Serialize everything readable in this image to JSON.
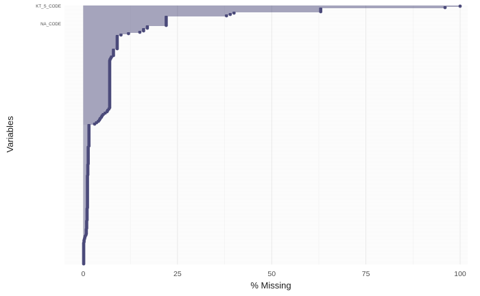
{
  "chart_data": {
    "type": "lollipop",
    "orientation": "horizontal",
    "xlabel": "% Missing",
    "ylabel": "Variables",
    "xlim": [
      -5,
      102
    ],
    "xticks": [
      0,
      25,
      50,
      75,
      100
    ],
    "grid": true,
    "legend": "none",
    "colors": {
      "mark": "#4b4a7a",
      "grid_major": "#e3e3e3",
      "grid_minor": "#f0f0f0",
      "text": "#4d4d4d"
    },
    "variables": [
      "KT_S_CODE",
      "",
      "",
      "",
      "",
      "",
      "",
      "",
      "",
      "",
      "",
      "",
      "",
      "NA_CODE",
      "",
      "",
      "",
      "",
      "",
      "",
      "",
      "",
      "",
      "",
      "",
      "",
      "",
      "",
      "",
      "",
      "",
      "",
      "",
      "",
      "",
      "",
      "",
      "",
      "",
      "",
      "",
      "",
      "",
      "",
      "",
      "",
      "",
      "",
      "",
      "",
      "",
      "",
      "",
      "",
      "",
      "",
      "",
      "",
      "",
      "",
      "",
      "",
      "",
      "",
      "",
      "",
      "",
      "",
      "",
      "",
      "",
      "",
      "",
      "",
      "",
      "",
      "",
      "",
      "",
      "",
      "",
      "",
      "",
      "",
      "",
      "",
      "",
      "",
      "",
      "",
      "",
      "",
      "",
      "",
      "",
      "",
      "",
      "",
      "",
      "",
      "",
      "",
      "",
      "",
      "",
      "",
      "",
      "",
      "",
      "",
      "",
      "",
      "",
      "",
      "",
      "",
      "",
      "",
      "",
      "",
      "",
      "",
      "",
      "",
      "",
      "",
      "",
      "",
      "",
      "",
      "",
      "",
      "",
      "",
      "",
      "",
      "",
      "",
      "",
      "",
      "",
      "",
      "",
      "",
      "",
      "",
      "",
      "",
      "",
      "",
      "",
      "",
      "",
      "",
      "",
      "",
      "",
      "",
      "",
      "",
      ""
    ],
    "values": [
      100,
      96,
      63,
      63,
      63,
      40,
      39,
      38,
      22,
      22,
      22,
      22,
      22,
      22,
      22,
      17,
      17,
      16,
      16,
      15,
      12,
      10,
      9,
      9,
      9,
      9,
      9,
      9,
      9,
      9,
      9,
      9,
      8,
      8,
      8,
      8,
      8,
      7.5,
      7.3,
      7.1,
      7,
      7,
      7,
      7,
      7,
      7,
      7,
      7,
      7,
      7,
      7,
      7,
      7,
      7,
      7,
      7,
      7,
      7,
      7,
      7,
      7,
      7,
      7,
      7,
      7,
      7,
      7,
      7,
      7,
      7,
      7,
      7,
      7,
      7,
      7,
      6.8,
      6.5,
      6.3,
      5.8,
      5.3,
      5,
      4.8,
      4.5,
      4.3,
      4,
      3.5,
      3,
      1.5,
      1.5,
      1.5,
      1.5,
      1.5,
      1.5,
      1.5,
      1.5,
      1.5,
      1.5,
      1.5,
      1.5,
      1.5,
      1.5,
      1.5,
      1.5,
      1.3,
      1.3,
      1.3,
      1.3,
      1.3,
      1.3,
      1.3,
      1.3,
      1.3,
      1.3,
      1.3,
      1.3,
      1.3,
      1.2,
      1.2,
      1.2,
      1.2,
      1.2,
      1.2,
      1.2,
      1.2,
      1.1,
      1.1,
      1.1,
      1.1,
      1.1,
      1.1,
      1.1,
      1.1,
      1.1,
      1.1,
      1.1,
      1.1,
      1.1,
      1.1,
      1.1,
      1.1,
      1.1,
      1.1,
      1.1,
      1.1,
      1.1,
      1.1,
      1.1,
      1.1,
      1,
      1,
      1,
      1,
      1,
      1,
      1,
      1,
      1,
      0.9,
      0.9,
      0.9,
      0.9,
      0.9,
      0.9,
      0.8,
      0.8,
      0.8,
      0.8,
      0.7,
      0.5,
      0.4,
      0.3,
      0.2,
      0.2,
      0.1,
      0.1,
      0.1,
      0.1,
      0.1,
      0.1,
      0.1,
      0.1,
      0.1,
      0.1,
      0.1,
      0.1,
      0.1,
      0.1,
      0.1,
      0.1
    ]
  }
}
